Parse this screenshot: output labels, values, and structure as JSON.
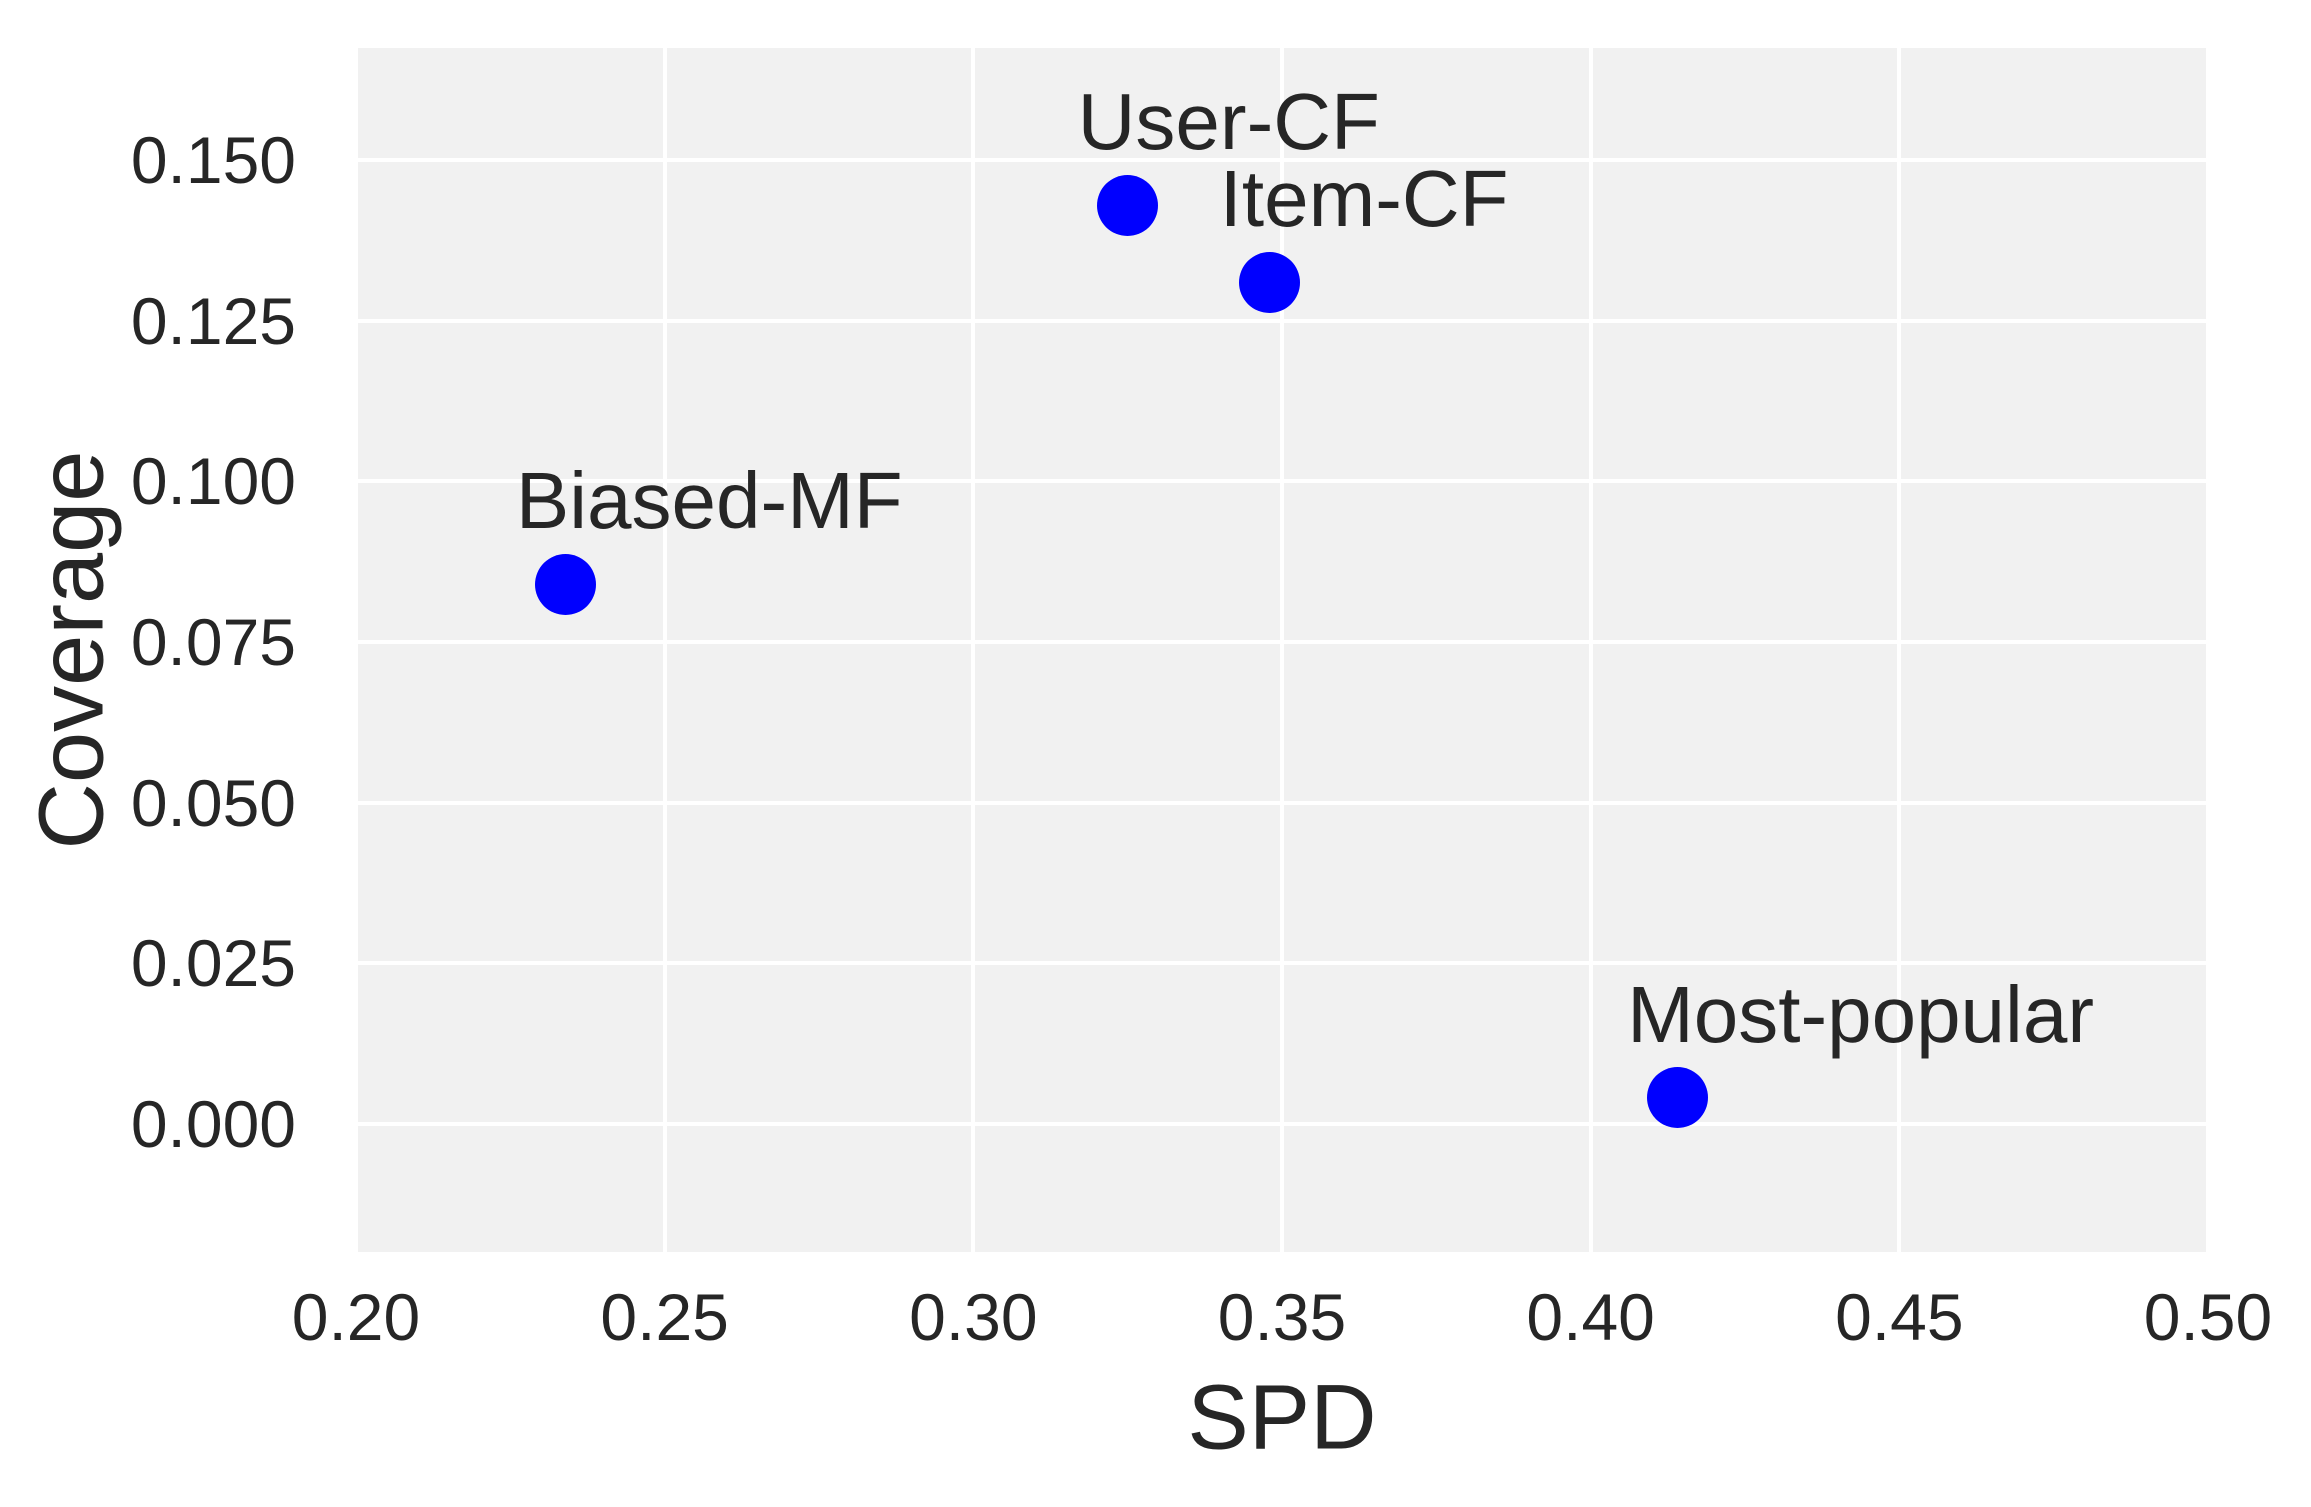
{
  "figure": {
    "background_color": "#ffffff",
    "panel_color": "#f1f1f1",
    "gridline_color": "#ffffff",
    "text_color": "#262626",
    "marker_color": "#0000ff"
  },
  "chart_data": {
    "type": "scatter",
    "title": "",
    "xlabel": "SPD",
    "ylabel": "Coverage",
    "xlim": [
      0.2,
      0.5
    ],
    "ylim": [
      -0.02,
      0.1675
    ],
    "xticks": [
      0.2,
      0.25,
      0.3,
      0.35,
      0.4,
      0.45,
      0.5
    ],
    "xtick_labels": [
      "0.20",
      "0.25",
      "0.30",
      "0.35",
      "0.40",
      "0.45",
      "0.50"
    ],
    "yticks": [
      0.0,
      0.025,
      0.05,
      0.075,
      0.1,
      0.125,
      0.15
    ],
    "ytick_labels": [
      "0.000",
      "0.025",
      "0.050",
      "0.075",
      "0.100",
      "0.125",
      "0.150"
    ],
    "grid": true,
    "legend": false,
    "series": [
      {
        "name": "User-CF",
        "x": 0.325,
        "y": 0.143
      },
      {
        "name": "Item-CF",
        "x": 0.348,
        "y": 0.131
      },
      {
        "name": "Biased-MF",
        "x": 0.234,
        "y": 0.084
      },
      {
        "name": "Most-popular",
        "x": 0.414,
        "y": 0.004
      }
    ]
  }
}
